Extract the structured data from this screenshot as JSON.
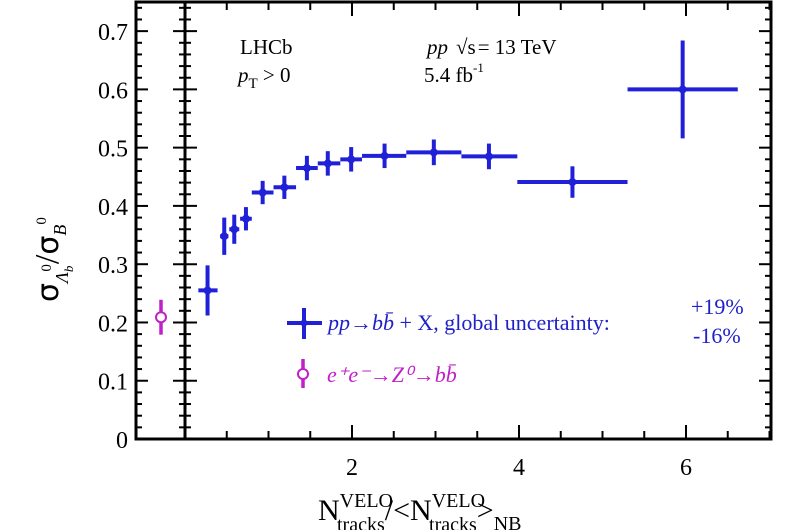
{
  "chart_data": {
    "type": "scatter",
    "title": "",
    "xlabel": "N_tracks^VELO / <N_tracks^VELO>_NB",
    "ylabel": "σ_{Λb0} / σ_{B0}",
    "xlim": [
      0,
      7.02
    ],
    "ylim": [
      0,
      0.75
    ],
    "xticks": [
      2,
      4,
      6
    ],
    "yticks": [
      0,
      0.1,
      0.2,
      0.3,
      0.4,
      0.5,
      0.6,
      0.7
    ],
    "grid": false,
    "legend_position": "lower right",
    "series": [
      {
        "name": "pp→bb̄ + X, global uncertainty: +19% −16%",
        "color": "#2020d8",
        "marker": "filled-circle-cross",
        "x": [
          0.27,
          0.47,
          0.59,
          0.73,
          0.93,
          1.19,
          1.46,
          1.71,
          1.99,
          2.39,
          2.98,
          3.64,
          4.64,
          5.96
        ],
        "x_low": [
          0.16,
          0.42,
          0.53,
          0.66,
          0.8,
          1.06,
          1.33,
          1.59,
          1.86,
          2.12,
          2.65,
          3.31,
          3.98,
          5.3
        ],
        "x_high": [
          0.39,
          0.52,
          0.65,
          0.8,
          1.06,
          1.33,
          1.59,
          1.86,
          2.12,
          2.65,
          3.31,
          3.98,
          5.3,
          6.62
        ],
        "y": [
          0.255,
          0.348,
          0.36,
          0.378,
          0.423,
          0.432,
          0.465,
          0.473,
          0.48,
          0.486,
          0.492,
          0.485,
          0.441,
          0.6
        ],
        "y_err": [
          0.043,
          0.032,
          0.025,
          0.02,
          0.02,
          0.02,
          0.021,
          0.021,
          0.021,
          0.021,
          0.022,
          0.022,
          0.027,
          0.084
        ]
      },
      {
        "name": "e+e−→Z0→bb̄",
        "color": "#c020c8",
        "marker": "open-circle",
        "x_panel": "left-reference",
        "y": [
          0.209
        ],
        "y_err": [
          0.03
        ]
      }
    ],
    "annotations": [
      "LHCb",
      "pT > 0",
      "pp √s = 13 TeV",
      "5.4 fb⁻¹"
    ]
  },
  "labels": {
    "experiment": "LHCb",
    "pt_main": "p",
    "pt_sub": "T",
    "pt_cut": " > 0",
    "energy_pp": "pp",
    "energy_rest": "= 13 TeV",
    "sqrt_s": "√s",
    "lumi": "5.4 fb",
    "lumi_exp": "-1",
    "ylabel_sigma1": "σ",
    "ylabel_sub1": "Λ",
    "ylabel_subsub1": "b",
    "ylabel_sup1": "0",
    "ylabel_slash": "/",
    "ylabel_sigma2": "σ",
    "ylabel_sub2": "B",
    "ylabel_sup2": "0",
    "xlabel_N": "N",
    "xlabel_sup": "VELO",
    "xlabel_sub": "tracks",
    "xlabel_mid": "/<N",
    "xlabel_sup2": "VELO",
    "xlabel_sub2": "tracks",
    "xlabel_close": ">",
    "xlabel_nb": "NB",
    "legend_blue_proc": "pp→bb̄",
    "legend_blue_rest": " + X, global uncertainty:",
    "legend_blue_plus": "+19%",
    "legend_blue_minus": "-16%",
    "legend_mag": "e⁺e⁻→Z⁰→bb̄"
  }
}
